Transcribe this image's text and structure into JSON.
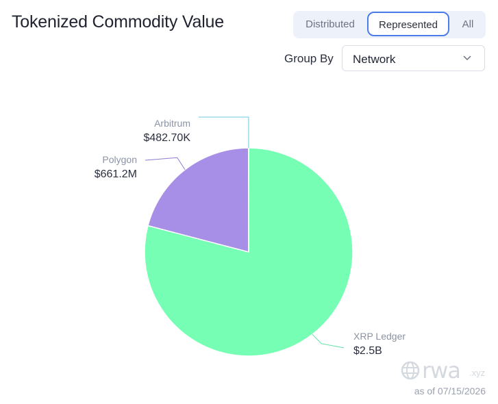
{
  "header": {
    "title": "Tokenized Commodity Value"
  },
  "tabs": [
    {
      "label": "Distributed",
      "active": false
    },
    {
      "label": "Represented",
      "active": true
    },
    {
      "label": "All",
      "active": false
    }
  ],
  "group_by": {
    "label": "Group By",
    "selected": "Network"
  },
  "chart_data": {
    "type": "pie",
    "slices": [
      {
        "name": "XRP Ledger",
        "value": 2500000000,
        "label": "$2.5B",
        "color": "#76ffb4"
      },
      {
        "name": "Polygon",
        "value": 661200000,
        "label": "$661.2M",
        "color": "#a78ee6"
      },
      {
        "name": "Arbitrum",
        "value": 482700,
        "label": "$482.70K",
        "color": "#7fd3ee"
      }
    ]
  },
  "footer": {
    "logo_text": "rwa",
    "logo_suffix": ".xyz",
    "as_of": "as of 07/15/2026"
  },
  "icons": {
    "dropdown": "chevron-down-icon",
    "logo": "globe-icon"
  }
}
